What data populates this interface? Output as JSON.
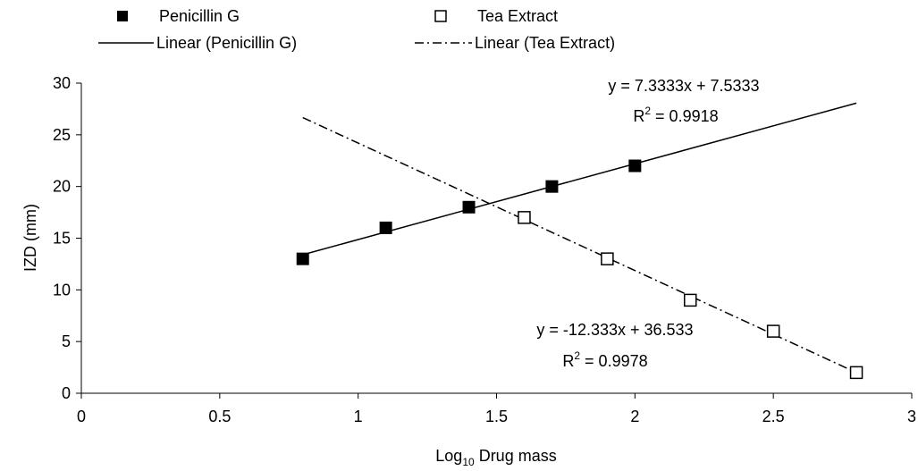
{
  "chart_data": {
    "type": "scatter",
    "title": "",
    "xlabel": {
      "main": "Log",
      "sub": "10",
      "rest": " Drug mass"
    },
    "ylabel": "IZD (mm)",
    "xlim": [
      0,
      3
    ],
    "ylim": [
      0,
      30
    ],
    "xticks": [
      0,
      0.5,
      1,
      1.5,
      2,
      2.5,
      3
    ],
    "xtick_labels": [
      "0",
      "0.5",
      "1",
      "1.5",
      "2",
      "2.5",
      "3"
    ],
    "yticks": [
      0,
      5,
      10,
      15,
      20,
      25,
      30
    ],
    "ytick_labels": [
      "0",
      "5",
      "10",
      "15",
      "20",
      "25",
      "30"
    ],
    "grid": false,
    "legend_position": "top",
    "series": [
      {
        "name": "Penicillin G",
        "marker": "filled-square",
        "color": "#000000",
        "points": [
          [
            0.8,
            13
          ],
          [
            1.1,
            16
          ],
          [
            1.4,
            18
          ],
          [
            1.7,
            20
          ],
          [
            2.0,
            22
          ]
        ]
      },
      {
        "name": "Tea Extract",
        "marker": "open-square",
        "color": "#000000",
        "points": [
          [
            1.6,
            17
          ],
          [
            1.9,
            13
          ],
          [
            2.2,
            9
          ],
          [
            2.5,
            6
          ],
          [
            2.8,
            2
          ]
        ]
      }
    ],
    "trendlines": [
      {
        "name": "Linear (Penicillin G)",
        "style": "solid",
        "slope": 7.3333,
        "intercept": 7.5333,
        "x_range": [
          0.8,
          2.8
        ],
        "equation": "y = 7.3333x + 7.5333",
        "r2_prefix": "R",
        "r2_sup": "2",
        "r2_value": " = 0.9918"
      },
      {
        "name": "Linear (Tea Extract)",
        "style": "dash-dot",
        "slope": -12.333,
        "intercept": 36.533,
        "x_range": [
          0.8,
          2.8
        ],
        "equation": "y = -12.333x + 36.533",
        "r2_prefix": "R",
        "r2_sup": "2",
        "r2_value": " = 0.9978"
      }
    ]
  }
}
